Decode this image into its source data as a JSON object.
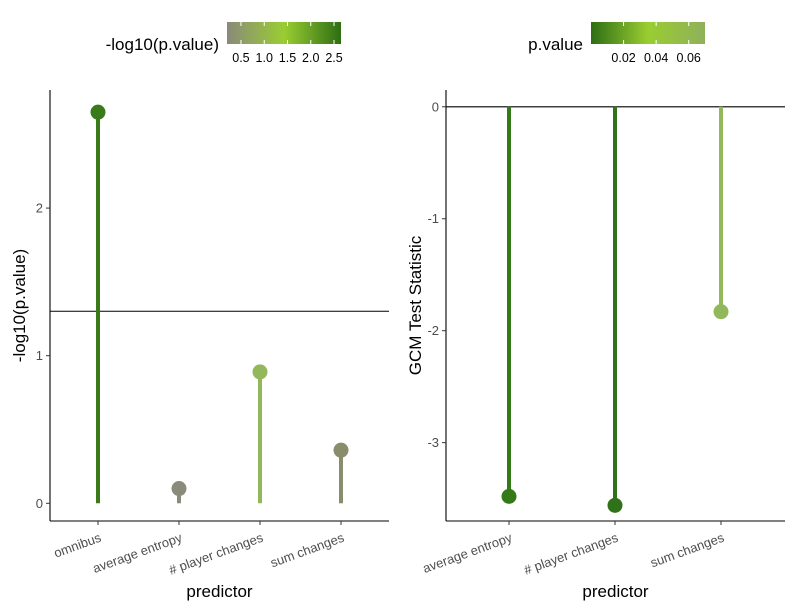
{
  "chart_data": [
    {
      "type": "lollipop",
      "xlabel": "predictor",
      "ylabel": "-log10(p.value)",
      "categories": [
        "omnibus",
        "average entropy",
        "# player changes",
        "sum changes"
      ],
      "values": [
        2.65,
        0.1,
        0.89,
        0.36
      ],
      "ylim": [
        -0.12,
        2.8
      ],
      "yticks": [
        0,
        1,
        2
      ],
      "reference_line": 1.301,
      "grid": false,
      "legend": {
        "title": "-log10(p.value)",
        "position": "top",
        "range": [
          0.2,
          2.65
        ],
        "ticks": [
          0.5,
          1.0,
          1.5,
          2.0,
          2.5
        ],
        "tick_labels": [
          "0.5",
          "1.0",
          "1.5",
          "2.0",
          "2.5"
        ],
        "colors": [
          "#8a8a7a",
          "#9acd32",
          "#2e6e14"
        ]
      },
      "point_colors": [
        "#3a7a1a",
        "#8a8b78",
        "#93b85c",
        "#8a8d6c"
      ]
    },
    {
      "type": "lollipop",
      "xlabel": "predictor",
      "ylabel": "GCM Test Statistic",
      "categories": [
        "average entropy",
        "# player changes",
        "sum changes"
      ],
      "values": [
        -3.48,
        -3.56,
        -1.83
      ],
      "ylim": [
        -3.7,
        0.15
      ],
      "yticks": [
        0,
        -1,
        -2,
        -3
      ],
      "reference_line": 0,
      "grid": false,
      "legend": {
        "title": "p.value",
        "position": "top",
        "range": [
          0.0,
          0.07
        ],
        "ticks": [
          0.02,
          0.04,
          0.06
        ],
        "tick_labels": [
          "0.02",
          "0.04",
          "0.06"
        ],
        "colors": [
          "#2e6e14",
          "#9acd32",
          "#8fb05a"
        ]
      },
      "point_colors": [
        "#347a18",
        "#30721a",
        "#93b85c"
      ]
    }
  ]
}
